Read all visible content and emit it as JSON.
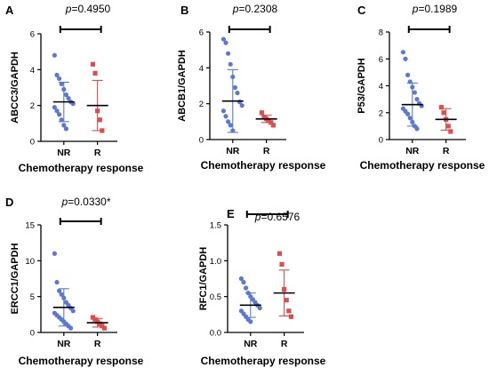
{
  "figure": {
    "colors": {
      "NR": "#5b78d6",
      "R": "#e04b4b"
    }
  },
  "chart_data": [
    {
      "type": "scatter",
      "panel": "A",
      "p_prefix": "p",
      "p_value": "=0.4950",
      "ylabel": "ABCC3/GAPDH",
      "xlabel": "Chemotherapy response",
      "categories": [
        "NR",
        "R"
      ],
      "ylim": [
        0,
        6
      ],
      "yticks": [
        "0",
        "2",
        "4",
        "6"
      ],
      "series": [
        {
          "name": "NR",
          "values": [
            4.8,
            3.7,
            3.5,
            3.2,
            2.9,
            2.6,
            2.4,
            2.2,
            2.1,
            1.9,
            1.7,
            1.5,
            1.2,
            0.9,
            0.7
          ],
          "mean": 2.2,
          "sd": 1.1
        },
        {
          "name": "R",
          "values": [
            4.3,
            3.8,
            1.7,
            1.2,
            0.6
          ],
          "mean": 2.0,
          "sd": 1.4
        }
      ]
    },
    {
      "type": "scatter",
      "panel": "B",
      "p_prefix": "p",
      "p_value": "=0.2308",
      "ylabel": "ABCB1/GAPDH",
      "xlabel": "Chemotherapy response",
      "categories": [
        "NR",
        "R"
      ],
      "ylim": [
        0,
        6
      ],
      "yticks": [
        "0",
        "2",
        "4",
        "6"
      ],
      "series": [
        {
          "name": "NR",
          "values": [
            5.6,
            5.4,
            4.8,
            4.2,
            3.5,
            2.9,
            2.6,
            2.1,
            1.9,
            1.6,
            1.3,
            1.0,
            0.8,
            0.5
          ],
          "mean": 2.15,
          "sd": 1.75
        },
        {
          "name": "R",
          "values": [
            1.5,
            1.25,
            1.15,
            1.05,
            0.95,
            0.8
          ],
          "mean": 1.15,
          "sd": 0.2
        }
      ]
    },
    {
      "type": "scatter",
      "panel": "C",
      "p_prefix": "p",
      "p_value": "=0.1989",
      "ylabel": "P53/GAPDH",
      "xlabel": "Chemotherapy response",
      "categories": [
        "NR",
        "R"
      ],
      "ylim": [
        0,
        8
      ],
      "yticks": [
        "0",
        "2",
        "4",
        "6",
        "8"
      ],
      "series": [
        {
          "name": "NR",
          "values": [
            6.5,
            6.0,
            4.8,
            4.3,
            3.9,
            3.5,
            3.0,
            2.7,
            2.5,
            2.3,
            2.1,
            1.9,
            1.6,
            1.3,
            1.0,
            0.8
          ],
          "mean": 2.6,
          "sd": 1.6
        },
        {
          "name": "R",
          "values": [
            2.4,
            2.0,
            1.5,
            1.0,
            0.6
          ],
          "mean": 1.5,
          "sd": 0.8
        }
      ]
    },
    {
      "type": "scatter",
      "panel": "D",
      "p_prefix": "p",
      "p_value": "=0.0330*",
      "ylabel": "ERCC1/GAPDH",
      "xlabel": "Chemotherapy response",
      "categories": [
        "NR",
        "R"
      ],
      "ylim": [
        0,
        15
      ],
      "yticks": [
        "0",
        "5",
        "10",
        "15"
      ],
      "series": [
        {
          "name": "NR",
          "values": [
            11.0,
            7.0,
            5.8,
            5.3,
            4.8,
            4.2,
            3.8,
            3.4,
            3.0,
            2.7,
            2.4,
            2.1,
            1.8,
            1.5,
            1.2,
            0.9,
            0.6
          ],
          "mean": 3.5,
          "sd": 2.6
        },
        {
          "name": "R",
          "values": [
            2.1,
            1.8,
            1.5,
            1.2,
            0.9,
            0.6
          ],
          "mean": 1.35,
          "sd": 0.6
        }
      ]
    },
    {
      "type": "scatter",
      "panel": "E",
      "p_prefix": "p",
      "p_value": "=0.6576",
      "ylabel": "RFC1/GAPDH",
      "xlabel": "Chemotherapy response",
      "categories": [
        "NR",
        "R"
      ],
      "ylim": [
        0,
        1.5
      ],
      "yticks": [
        "0.0",
        "0.5",
        "1.0",
        "1.5"
      ],
      "series": [
        {
          "name": "NR",
          "values": [
            0.75,
            0.7,
            0.62,
            0.55,
            0.5,
            0.46,
            0.42,
            0.38,
            0.34,
            0.3,
            0.26,
            0.22,
            0.18,
            0.15
          ],
          "mean": 0.38,
          "sd": 0.17
        },
        {
          "name": "R",
          "values": [
            1.1,
            0.95,
            0.6,
            0.45,
            0.3,
            0.22
          ],
          "mean": 0.55,
          "sd": 0.32
        }
      ]
    }
  ]
}
